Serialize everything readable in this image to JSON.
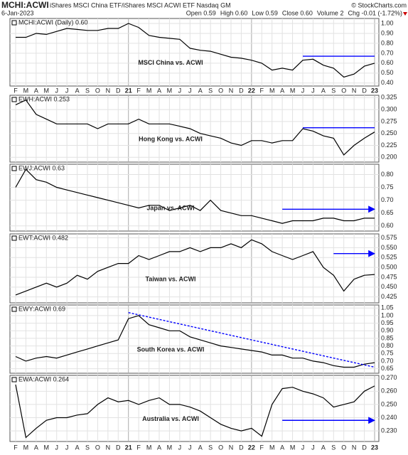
{
  "header": {
    "symbol": "MCHI:ACWI",
    "description": "iShares MSCI China ETF/iShares MSCI ACWI ETF  Nasdaq GM",
    "date": "6-Jan-2023",
    "watermark": "© StockCharts.com",
    "stats": [
      "Open 0.59",
      "High 0.60",
      "Low 0.59",
      "Close 0.60",
      "Volume 2",
      "Chg -0.01 (-1.72%)"
    ]
  },
  "x_axis": {
    "categories": [
      "F",
      "M",
      "A",
      "M",
      "J",
      "J",
      "A",
      "S",
      "O",
      "N",
      "D",
      "21",
      "F",
      "M",
      "A",
      "M",
      "J",
      "J",
      "A",
      "S",
      "O",
      "N",
      "D",
      "22",
      "F",
      "M",
      "A",
      "M",
      "J",
      "J",
      "A",
      "S",
      "O",
      "N",
      "D",
      "23"
    ]
  },
  "chart_data": [
    {
      "type": "line",
      "legend": "MCHI:ACWI (Daily) 0.60",
      "annotation": "MSCI China vs. ACWI",
      "ylim": [
        0.37,
        1.05
      ],
      "yticks": [
        {
          "value": 0.4,
          "label": "0.40"
        },
        {
          "value": 0.5,
          "label": "0.50"
        },
        {
          "value": 0.6,
          "label": "0.60"
        },
        {
          "value": 0.7,
          "label": "0.70"
        },
        {
          "value": 0.8,
          "label": "0.80"
        },
        {
          "value": 0.9,
          "label": "0.90"
        },
        {
          "value": 1.0,
          "label": "1.00"
        }
      ],
      "series": [
        {
          "color": "#000000",
          "values": [
            0.86,
            0.86,
            0.9,
            0.89,
            0.92,
            0.95,
            0.94,
            0.93,
            0.93,
            0.95,
            0.95,
            1.0,
            0.96,
            0.88,
            0.86,
            0.85,
            0.84,
            0.75,
            0.73,
            0.72,
            0.69,
            0.66,
            0.65,
            0.63,
            0.6,
            0.53,
            0.55,
            0.53,
            0.63,
            0.64,
            0.58,
            0.55,
            0.46,
            0.49,
            0.57,
            0.6
          ]
        }
      ],
      "lines": [
        {
          "x": [
            28,
            35
          ],
          "y": [
            0.67,
            0.67
          ],
          "color": "#0000ff",
          "style": "solid",
          "arrow": false
        }
      ]
    },
    {
      "type": "line",
      "legend": "EWH:ACWI 0.253",
      "annotation": "Hong Kong vs. ACWI",
      "ylim": [
        0.19,
        0.33
      ],
      "yticks": [
        {
          "value": 0.2,
          "label": "0.200"
        },
        {
          "value": 0.225,
          "label": "0.225"
        },
        {
          "value": 0.25,
          "label": "0.250"
        },
        {
          "value": 0.275,
          "label": "0.275"
        },
        {
          "value": 0.3,
          "label": "0.300"
        },
        {
          "value": 0.325,
          "label": "0.325"
        }
      ],
      "series": [
        {
          "color": "#000000",
          "values": [
            0.31,
            0.32,
            0.29,
            0.28,
            0.27,
            0.27,
            0.27,
            0.27,
            0.26,
            0.27,
            0.27,
            0.27,
            0.28,
            0.27,
            0.27,
            0.27,
            0.265,
            0.26,
            0.25,
            0.245,
            0.24,
            0.23,
            0.225,
            0.235,
            0.235,
            0.23,
            0.235,
            0.235,
            0.26,
            0.255,
            0.245,
            0.24,
            0.205,
            0.225,
            0.24,
            0.253
          ]
        }
      ],
      "lines": [
        {
          "x": [
            28,
            35
          ],
          "y": [
            0.262,
            0.262
          ],
          "color": "#0000ff",
          "style": "solid",
          "arrow": false
        }
      ]
    },
    {
      "type": "line",
      "legend": "EWJ:ACWI 0.63",
      "annotation": "Japan vs. ACWI",
      "ylim": [
        0.58,
        0.84
      ],
      "yticks": [
        {
          "value": 0.6,
          "label": "0.60"
        },
        0.65,
        {
          "value": 0.7,
          "label": "0.70"
        },
        0.75,
        {
          "value": 0.8,
          "label": "0.80"
        }
      ],
      "series": [
        {
          "color": "#000000",
          "values": [
            0.75,
            0.82,
            0.78,
            0.77,
            0.75,
            0.74,
            0.73,
            0.72,
            0.71,
            0.7,
            0.69,
            0.68,
            0.67,
            0.68,
            0.68,
            0.66,
            0.67,
            0.68,
            0.66,
            0.7,
            0.66,
            0.65,
            0.64,
            0.64,
            0.63,
            0.62,
            0.61,
            0.62,
            0.62,
            0.62,
            0.63,
            0.63,
            0.62,
            0.62,
            0.63,
            0.63
          ]
        }
      ],
      "lines": [
        {
          "x": [
            26,
            35
          ],
          "y": [
            0.665,
            0.665
          ],
          "color": "#0000ff",
          "style": "solid",
          "arrow": true
        }
      ]
    },
    {
      "type": "line",
      "legend": "EWT:ACWI 0.482",
      "annotation": "Taiwan vs. ACWI",
      "ylim": [
        0.41,
        0.585
      ],
      "yticks": [
        0.425,
        {
          "value": 0.45,
          "label": "0.450"
        },
        0.475,
        {
          "value": 0.5,
          "label": "0.500"
        },
        0.525,
        {
          "value": 0.55,
          "label": "0.550"
        },
        0.575
      ],
      "series": [
        {
          "color": "#000000",
          "values": [
            0.43,
            0.44,
            0.45,
            0.46,
            0.45,
            0.46,
            0.48,
            0.47,
            0.49,
            0.5,
            0.51,
            0.51,
            0.53,
            0.52,
            0.53,
            0.54,
            0.54,
            0.55,
            0.54,
            0.55,
            0.55,
            0.56,
            0.55,
            0.57,
            0.56,
            0.54,
            0.53,
            0.52,
            0.53,
            0.54,
            0.5,
            0.48,
            0.44,
            0.47,
            0.48,
            0.482
          ]
        }
      ],
      "lines": [
        {
          "x": [
            31,
            35
          ],
          "y": [
            0.535,
            0.535
          ],
          "color": "#0000ff",
          "style": "solid",
          "arrow": true
        }
      ]
    },
    {
      "type": "line",
      "legend": "EWY:ACWI 0.69",
      "annotation": "South Korea vs. ACWI",
      "ylim": [
        0.62,
        1.07
      ],
      "yticks": [
        0.65,
        {
          "value": 0.7,
          "label": "0.70"
        },
        0.75,
        {
          "value": 0.8,
          "label": "0.80"
        },
        0.85,
        {
          "value": 0.9,
          "label": "0.90"
        },
        0.95,
        {
          "value": 1.0,
          "label": "1.00"
        },
        1.05
      ],
      "series": [
        {
          "color": "#000000",
          "values": [
            0.73,
            0.7,
            0.72,
            0.73,
            0.72,
            0.74,
            0.76,
            0.78,
            0.8,
            0.82,
            0.84,
            0.98,
            1.0,
            0.94,
            0.92,
            0.9,
            0.9,
            0.86,
            0.84,
            0.82,
            0.8,
            0.79,
            0.78,
            0.77,
            0.76,
            0.74,
            0.74,
            0.72,
            0.72,
            0.7,
            0.69,
            0.67,
            0.66,
            0.66,
            0.68,
            0.69
          ]
        }
      ],
      "lines": [
        {
          "x": [
            11,
            35
          ],
          "y": [
            1.02,
            0.66
          ],
          "color": "#0000ff",
          "style": "dashed",
          "arrow": false
        }
      ]
    },
    {
      "type": "line",
      "legend": "EWA:ACWI 0.264",
      "annotation": "Australia vs. ACWI",
      "ylim": [
        0.222,
        0.272
      ],
      "yticks": [
        {
          "value": 0.23,
          "label": "0.230"
        },
        {
          "value": 0.24,
          "label": "0.240"
        },
        {
          "value": 0.25,
          "label": "0.250"
        },
        {
          "value": 0.26,
          "label": "0.260"
        },
        {
          "value": 0.27,
          "label": "0.270"
        }
      ],
      "series": [
        {
          "color": "#000000",
          "values": [
            0.265,
            0.225,
            0.232,
            0.238,
            0.24,
            0.24,
            0.242,
            0.243,
            0.25,
            0.255,
            0.252,
            0.253,
            0.25,
            0.253,
            0.255,
            0.25,
            0.25,
            0.248,
            0.245,
            0.24,
            0.235,
            0.232,
            0.23,
            0.232,
            0.226,
            0.25,
            0.262,
            0.263,
            0.26,
            0.258,
            0.255,
            0.248,
            0.25,
            0.252,
            0.26,
            0.264
          ]
        }
      ],
      "lines": [
        {
          "x": [
            26,
            35
          ],
          "y": [
            0.238,
            0.238
          ],
          "color": "#0000ff",
          "style": "solid",
          "arrow": true
        }
      ]
    }
  ]
}
